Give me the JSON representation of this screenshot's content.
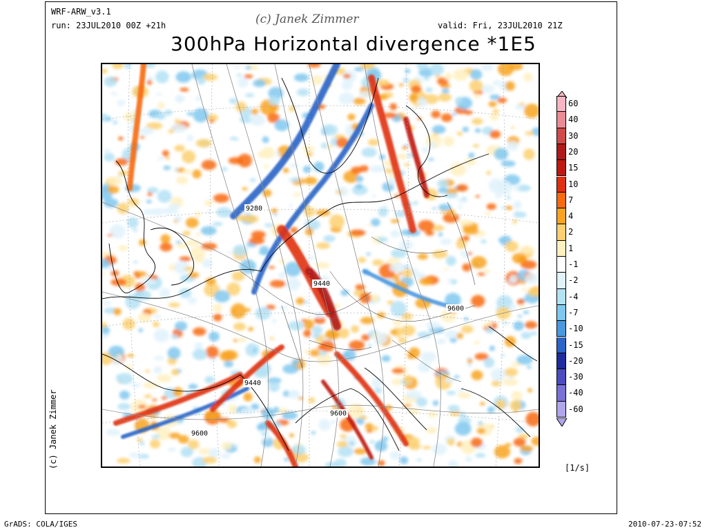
{
  "header": {
    "model": "WRF-ARW_v3.1",
    "run": "run: 23JUL2010 00Z +21h",
    "credit": "(c) Janek Zimmer",
    "valid": "valid: Fri, 23JUL2010 21Z",
    "title": "300hPa Horizontal divergence *1E5"
  },
  "side_credit": "(c) Janek Zimmer",
  "colorbar": {
    "units": "[1/s]",
    "levels": [
      {
        "label": "60",
        "color": "#f7b5c3"
      },
      {
        "label": "40",
        "color": "#ec8a96"
      },
      {
        "label": "30",
        "color": "#d04a4a"
      },
      {
        "label": "20",
        "color": "#b01a1a"
      },
      {
        "label": "15",
        "color": "#c01810"
      },
      {
        "label": "10",
        "color": "#e03010"
      },
      {
        "label": "7",
        "color": "#f86a10"
      },
      {
        "label": "4",
        "color": "#f8a420"
      },
      {
        "label": "2",
        "color": "#fcd070"
      },
      {
        "label": "1",
        "color": "#fff0c0"
      },
      {
        "label": "-1",
        "color": "#ffffff"
      },
      {
        "label": "-2",
        "color": "#e0f2fb"
      },
      {
        "label": "-4",
        "color": "#b4e2f4"
      },
      {
        "label": "-7",
        "color": "#80c8ee"
      },
      {
        "label": "-10",
        "color": "#4a98e0"
      },
      {
        "label": "-15",
        "color": "#2a64c8"
      },
      {
        "label": "-20",
        "color": "#1e2c9e"
      },
      {
        "label": "-30",
        "color": "#4a4cc0"
      },
      {
        "label": "-40",
        "color": "#7a70d8"
      },
      {
        "label": "-60",
        "color": "#b0a6ec"
      }
    ]
  },
  "contour_labels": [
    "9280",
    "9440",
    "9600",
    "9440",
    "9600",
    "9600"
  ],
  "footer": {
    "software": "GrADS: COLA/IGES",
    "timestamp": "2010-07-23-07:52"
  }
}
